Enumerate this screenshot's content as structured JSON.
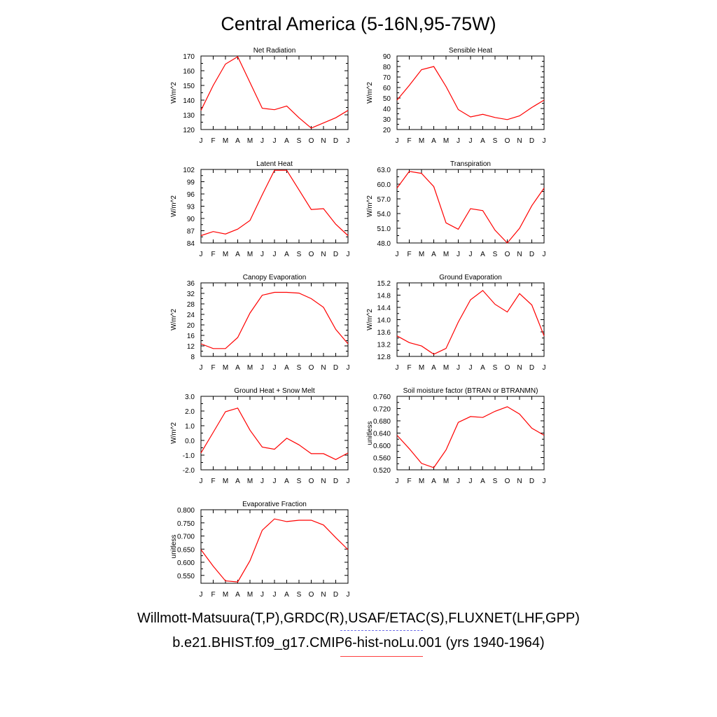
{
  "title": "Central America (5-16N,95-75W)",
  "legend": {
    "observed_label": "Willmott-Matsuura(T,P),GRDC(R),USAF/ETAC(S),FLUXNET(LHF,GPP)",
    "model_label": "b.e21.BHIST.f09_g17.CMIP6-hist-noLu.001 (yrs 1940-1964)",
    "observed_color": "#6f6fe8",
    "model_color": "#ff0000"
  },
  "chart_data": [
    {
      "type": "line",
      "title": "Net Radiation",
      "ylabel": "W/m^2",
      "x": [
        "J",
        "F",
        "M",
        "A",
        "M",
        "J",
        "J",
        "A",
        "S",
        "O",
        "N",
        "D",
        "J"
      ],
      "ylim": [
        120,
        170
      ],
      "yticks": [
        "120",
        "130",
        "140",
        "150",
        "160",
        "170"
      ],
      "series": [
        {
          "color": "#ff0000",
          "values": [
            133,
            150,
            164.5,
            169.5,
            152,
            134.5,
            133.5,
            136,
            128,
            121,
            124.5,
            128,
            133
          ]
        }
      ]
    },
    {
      "type": "line",
      "title": "Sensible Heat",
      "ylabel": "W/m^2",
      "x": [
        "J",
        "F",
        "M",
        "A",
        "M",
        "J",
        "J",
        "A",
        "S",
        "O",
        "N",
        "D",
        "J"
      ],
      "ylim": [
        20,
        90
      ],
      "yticks": [
        "20",
        "30",
        "40",
        "50",
        "60",
        "70",
        "80",
        "90"
      ],
      "series": [
        {
          "color": "#ff0000",
          "values": [
            48,
            62,
            77,
            80,
            61,
            39,
            32,
            34.5,
            31.5,
            29.5,
            33,
            41,
            48
          ]
        }
      ]
    },
    {
      "type": "line",
      "title": "Latent Heat",
      "ylabel": "W/m^2",
      "x": [
        "J",
        "F",
        "M",
        "A",
        "M",
        "J",
        "J",
        "A",
        "S",
        "O",
        "N",
        "D",
        "J"
      ],
      "ylim": [
        84,
        102
      ],
      "yticks": [
        "84",
        "87",
        "90",
        "93",
        "96",
        "99",
        "102"
      ],
      "series": [
        {
          "color": "#ff0000",
          "values": [
            85.8,
            86.8,
            86.2,
            87.4,
            89.5,
            95.8,
            101.8,
            101.8,
            97,
            92.2,
            92.4,
            88.6,
            85.8
          ]
        }
      ]
    },
    {
      "type": "line",
      "title": "Transpiration",
      "ylabel": "W/m^2",
      "x": [
        "J",
        "F",
        "M",
        "A",
        "M",
        "J",
        "J",
        "A",
        "S",
        "O",
        "N",
        "D",
        "J"
      ],
      "ylim": [
        48,
        63
      ],
      "yticks": [
        "48.0",
        "51.0",
        "54.0",
        "57.0",
        "60.0",
        "63.0"
      ],
      "series": [
        {
          "color": "#ff0000",
          "values": [
            59.2,
            62.6,
            62.2,
            59.5,
            52.1,
            50.8,
            55.0,
            54.6,
            50.6,
            48.0,
            51.0,
            55.6,
            59.2
          ]
        }
      ]
    },
    {
      "type": "line",
      "title": "Canopy Evaporation",
      "ylabel": "W/m^2",
      "x": [
        "J",
        "F",
        "M",
        "A",
        "M",
        "J",
        "J",
        "A",
        "S",
        "O",
        "N",
        "D",
        "J"
      ],
      "ylim": [
        8,
        36
      ],
      "yticks": [
        "8",
        "12",
        "16",
        "20",
        "24",
        "28",
        "32",
        "36"
      ],
      "series": [
        {
          "color": "#ff0000",
          "values": [
            12.8,
            11,
            11,
            15.2,
            24.5,
            31.3,
            32.4,
            32.4,
            32.1,
            30,
            26.7,
            18.3,
            12.8
          ]
        }
      ]
    },
    {
      "type": "line",
      "title": "Ground Evaporation",
      "ylabel": "W/m^2",
      "x": [
        "J",
        "F",
        "M",
        "A",
        "M",
        "J",
        "J",
        "A",
        "S",
        "O",
        "N",
        "D",
        "J"
      ],
      "ylim": [
        12.8,
        15.2
      ],
      "yticks": [
        "12.8",
        "13.2",
        "13.6",
        "14.0",
        "14.4",
        "14.8",
        "15.2"
      ],
      "series": [
        {
          "color": "#ff0000",
          "values": [
            13.47,
            13.25,
            13.14,
            12.87,
            13.06,
            13.92,
            14.65,
            14.95,
            14.5,
            14.25,
            14.85,
            14.48,
            13.47
          ]
        }
      ]
    },
    {
      "type": "line",
      "title": "Ground Heat + Snow Melt",
      "ylabel": "W/m^2",
      "x": [
        "J",
        "F",
        "M",
        "A",
        "M",
        "J",
        "J",
        "A",
        "S",
        "O",
        "N",
        "D",
        "J"
      ],
      "ylim": [
        -2,
        3
      ],
      "yticks": [
        "-2.0",
        "-1.0",
        "0.0",
        "1.0",
        "2.0",
        "3.0"
      ],
      "series": [
        {
          "color": "#ff0000",
          "values": [
            -0.85,
            0.55,
            1.95,
            2.2,
            0.7,
            -0.45,
            -0.6,
            0.15,
            -0.3,
            -0.9,
            -0.9,
            -1.3,
            -0.85
          ]
        }
      ]
    },
    {
      "type": "line",
      "title": "Soil moisture factor (BTRAN or BTRANMN)",
      "ylabel": "unitless",
      "x": [
        "J",
        "F",
        "M",
        "A",
        "M",
        "J",
        "J",
        "A",
        "S",
        "O",
        "N",
        "D",
        "J"
      ],
      "ylim": [
        0.52,
        0.76
      ],
      "yticks": [
        "0.520",
        "0.560",
        "0.600",
        "0.640",
        "0.680",
        "0.720",
        "0.760"
      ],
      "series": [
        {
          "color": "#ff0000",
          "values": [
            0.633,
            0.589,
            0.541,
            0.527,
            0.585,
            0.675,
            0.694,
            0.691,
            0.711,
            0.726,
            0.702,
            0.656,
            0.633
          ]
        }
      ]
    },
    {
      "type": "line",
      "title": "Evaporative Fraction",
      "ylabel": "unitless",
      "x": [
        "J",
        "F",
        "M",
        "A",
        "M",
        "J",
        "J",
        "A",
        "S",
        "O",
        "N",
        "D",
        "J"
      ],
      "ylim": [
        0.52,
        0.8
      ],
      "yticks": [
        "0.550",
        "0.600",
        "0.650",
        "0.700",
        "0.750",
        "0.800"
      ],
      "series": [
        {
          "color": "#ff0000",
          "values": [
            0.648,
            0.585,
            0.529,
            0.525,
            0.606,
            0.722,
            0.765,
            0.755,
            0.76,
            0.76,
            0.742,
            0.694,
            0.648
          ]
        }
      ]
    }
  ]
}
